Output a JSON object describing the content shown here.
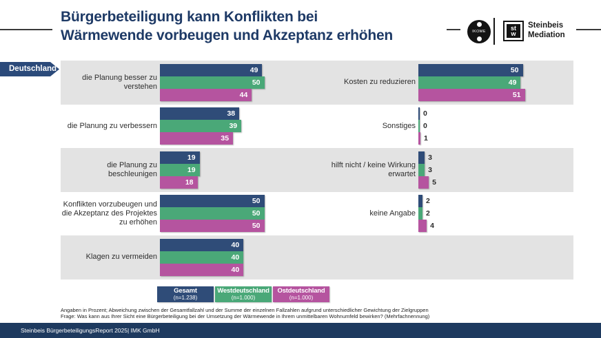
{
  "header": {
    "title_line1": "Bürgerbeteiligung kann Konflikten bei",
    "title_line2": "Wärmewende vorbeugen und Akzeptanz erhöhen",
    "region_tag": "Deutschland",
    "logos": {
      "ikome_label": "IKOME",
      "steinbeis_box_line1": "st",
      "steinbeis_box_line2": "w",
      "steinbeis_name_line1": "Steinbeis",
      "steinbeis_name_line2": "Mediation"
    }
  },
  "chart_data": {
    "type": "bar",
    "orientation": "horizontal",
    "unit": "percent",
    "title": "Bürgerbeteiligung kann Konflikten bei Wärmewende vorbeugen und Akzeptanz erhöhen",
    "xlim": [
      0,
      55
    ],
    "grid": false,
    "legend_position": "bottom",
    "series": [
      {
        "name": "Gesamt",
        "n": "(n=1.238)",
        "color": "#2f4c78"
      },
      {
        "name": "Westdeutschland",
        "n": "(n=1.000)",
        "color": "#4aa878"
      },
      {
        "name": "Ostdeutschland",
        "n": "(n=1.000)",
        "color": "#b5549f"
      }
    ],
    "left_column": [
      {
        "label": "die Planung besser zu verstehen",
        "values": [
          49,
          50,
          44
        ]
      },
      {
        "label": "die Planung zu verbessern",
        "values": [
          38,
          39,
          35
        ]
      },
      {
        "label": "die Planung zu beschleunigen",
        "values": [
          19,
          19,
          18
        ]
      },
      {
        "label": "Konflikten vorzubeugen und die Akzeptanz des Projektes zu erhöhen",
        "values": [
          50,
          50,
          50
        ]
      },
      {
        "label": "Klagen zu vermeiden",
        "values": [
          40,
          40,
          40
        ]
      }
    ],
    "right_column": [
      {
        "label": "Kosten zu reduzieren",
        "values": [
          50,
          49,
          51
        ]
      },
      {
        "label": "Sonstiges",
        "values": [
          0,
          0,
          1
        ]
      },
      {
        "label": "hilft nicht / keine Wirkung erwartet",
        "values": [
          3,
          3,
          5
        ]
      },
      {
        "label": "keine Angabe",
        "values": [
          2,
          2,
          4
        ]
      }
    ]
  },
  "footnotes": {
    "line1": "Angaben in Prozent; Abweichung zwischen der Gesamtfallzahl und der Summe der einzelnen Fallzahlen aufgrund unterschiedlicher Gewichtung der Zielgruppen",
    "line2": "Frage: Was kann aus Ihrer Sicht eine Bürgerbeteiligung bei der Umsetzung der Wärmewende in Ihrem unmittelbaren Wohnumfeld bewirken? (Mehrfachnennung)"
  },
  "footer": {
    "text": "Steinbeis BürgerbeteiligungsReport 2025| IMK GmbH"
  },
  "colors": {
    "title_navy": "#1e3a66",
    "banner_navy": "#2b4a7a",
    "footer_bg": "#1e3a5f",
    "stripe_gray": "#e3e3e3",
    "rule_color": "#3a3a3a"
  }
}
